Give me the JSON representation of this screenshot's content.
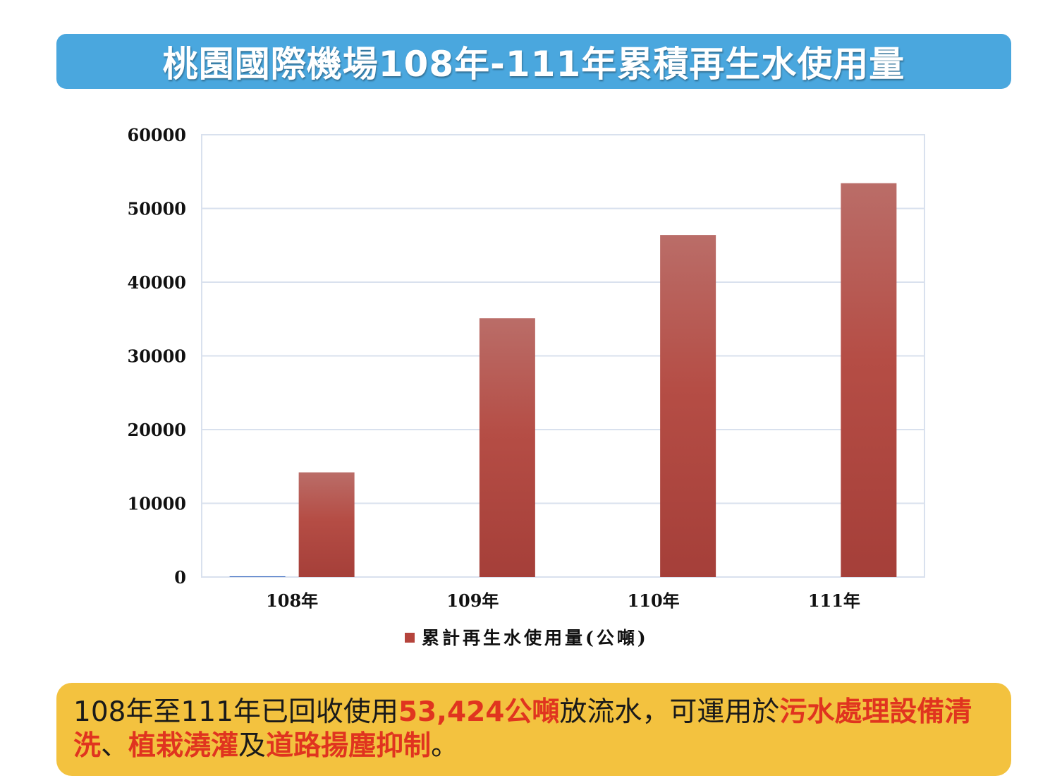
{
  "title": "桃園國際機場108年-111年累積再生水使用量",
  "chart_data": {
    "type": "bar",
    "categories": [
      "108年",
      "109年",
      "110年",
      "111年"
    ],
    "series": [
      {
        "name": "",
        "values": [
          100,
          0,
          0,
          0
        ],
        "color": "#4472c4"
      },
      {
        "name": "累計再生水使用量(公噸)",
        "values": [
          14200,
          35100,
          46400,
          53424
        ],
        "color": "#b5443c"
      }
    ],
    "ylim": [
      0,
      60000
    ],
    "yticks": [
      0,
      10000,
      20000,
      30000,
      40000,
      50000,
      60000
    ],
    "ytick_labels": [
      "0",
      "10000",
      "20000",
      "30000",
      "40000",
      "50000",
      "60000"
    ],
    "grid": true,
    "legend_position": "bottom",
    "title": "",
    "xlabel": "",
    "ylabel": ""
  },
  "summary": {
    "p1": "108年至111年已回收使用",
    "h1": "53,424公噸",
    "p2": "放流水，可運用於",
    "h2": "污水處理設備清洗",
    "p3": "、",
    "h3": "植栽澆灌",
    "p4": "及",
    "h4": "道路揚塵抑制",
    "p5": "。"
  },
  "colors": {
    "banner": "#4aa7de",
    "summary_bg": "#f3c23f",
    "highlight": "#e0341f",
    "bar_top": "#b96b66",
    "bar_bottom": "#a8403a",
    "grid": "#d9e1ee"
  }
}
